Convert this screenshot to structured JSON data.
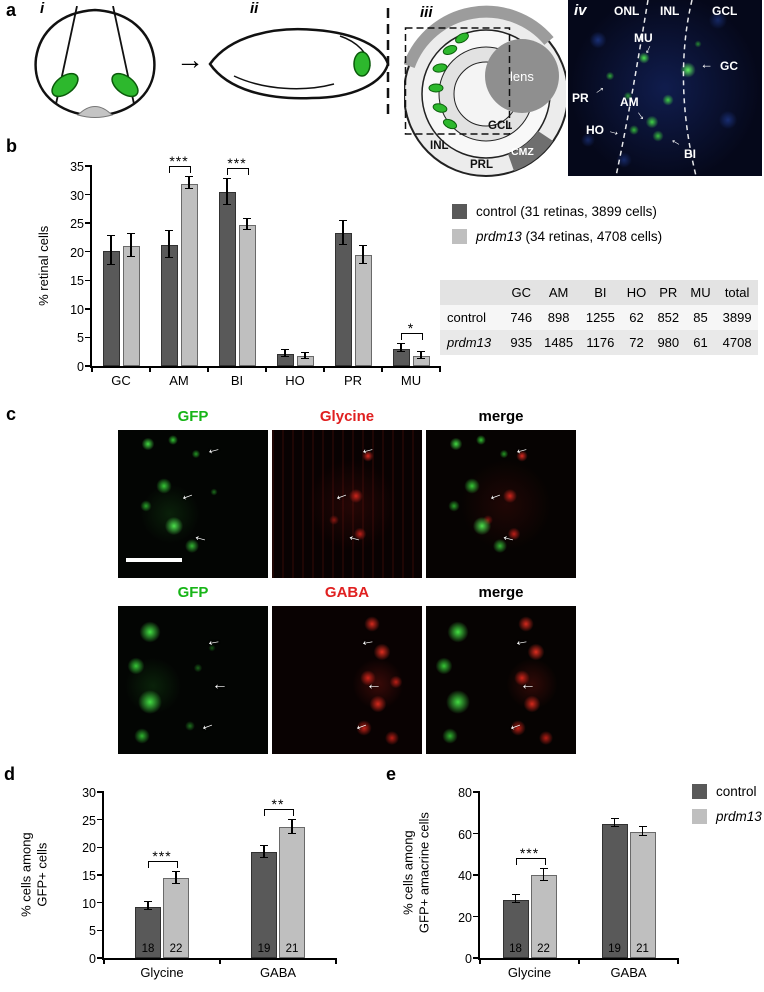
{
  "icons": {
    "arrow_right": "→"
  },
  "panels": {
    "a": {
      "label": "a",
      "sub_i": "i",
      "sub_ii": "ii",
      "sub_iii": "iii",
      "sub_iv": "iv",
      "iii_labels": {
        "lens": "lens",
        "gcl": "GCL",
        "inl": "INL",
        "cmz": "CMZ",
        "prl": "PRL"
      },
      "iv_labels": {
        "onl": "ONL",
        "inl": "INL",
        "gcl": "GCL",
        "mu": "MU",
        "gc": "GC",
        "pr": "PR",
        "am": "AM",
        "ho": "HO",
        "bi": "BI"
      }
    },
    "b": {
      "label": "b",
      "legend": [
        {
          "color": "#595959",
          "prefix": "",
          "text": "control (31 retinas, 3899 cells)"
        },
        {
          "color": "#bfbfbf",
          "prefix": "prdm13",
          "text": " (34 retinas, 4708 cells)"
        }
      ],
      "table": {
        "header": [
          "",
          "GC",
          "AM",
          "BI",
          "HO",
          "PR",
          "MU",
          "total"
        ],
        "rows": [
          [
            "control",
            "746",
            "898",
            "1255",
            "62",
            "852",
            "85",
            "3899"
          ],
          [
            "prdm13",
            "935",
            "1485",
            "1176",
            "72",
            "980",
            "61",
            "4708"
          ]
        ]
      }
    },
    "c": {
      "label": "c",
      "row1_titles": [
        "GFP",
        "Glycine",
        "merge"
      ],
      "row2_titles": [
        "GFP",
        "GABA",
        "merge"
      ],
      "colors": {
        "green": "#17b517",
        "red": "#e02020",
        "merge": "#000000"
      }
    },
    "d": {
      "label": "d"
    },
    "e": {
      "label": "e"
    },
    "legend_de": [
      {
        "color": "#595959",
        "text": "control"
      },
      {
        "color": "#bfbfbf",
        "text": "prdm13"
      }
    ]
  },
  "chart_data": [
    {
      "id": "b",
      "type": "bar",
      "title": "",
      "xlabel": "",
      "ylabel": "% retinal cells",
      "ylim": [
        0,
        35
      ],
      "ymax": 35,
      "ytick": 5,
      "categories": [
        "GC",
        "AM",
        "BI",
        "HO",
        "PR",
        "MU"
      ],
      "series": [
        {
          "name": "control",
          "color": "#595959",
          "values": [
            20.1,
            21.2,
            30.4,
            2.1,
            23.2,
            3.0
          ],
          "errors": [
            2.4,
            2.3,
            2.2,
            0.5,
            2.0,
            0.6
          ]
        },
        {
          "name": "prdm13",
          "color": "#bfbfbf",
          "values": [
            21.0,
            31.9,
            24.7,
            1.7,
            19.4,
            1.8
          ],
          "errors": [
            1.9,
            1.0,
            0.9,
            0.4,
            1.5,
            0.5
          ]
        }
      ],
      "significance": [
        {
          "category": 1,
          "label": "***"
        },
        {
          "category": 2,
          "label": "***"
        },
        {
          "category": 5,
          "label": "*"
        }
      ]
    },
    {
      "id": "d",
      "type": "bar",
      "title": "",
      "xlabel": "",
      "ylabel": [
        "% cells among",
        "GFP+ cells"
      ],
      "ylim": [
        0,
        30
      ],
      "ymax": 30,
      "ytick": 5,
      "categories": [
        "Glycine",
        "GABA"
      ],
      "series": [
        {
          "name": "control",
          "color": "#595959",
          "values": [
            9.3,
            19.1
          ],
          "errors": [
            0.6,
            1.0
          ],
          "n": [
            "18",
            "19"
          ]
        },
        {
          "name": "prdm13",
          "color": "#bfbfbf",
          "values": [
            14.4,
            23.6
          ],
          "errors": [
            1.0,
            1.2
          ],
          "n": [
            "22",
            "21"
          ]
        }
      ],
      "significance": [
        {
          "category": 0,
          "label": "***"
        },
        {
          "category": 1,
          "label": "**"
        }
      ]
    },
    {
      "id": "e",
      "type": "bar",
      "title": "",
      "xlabel": "",
      "ylabel": [
        "% cells among",
        "GFP+ amacrine cells"
      ],
      "ylim": [
        0,
        80
      ],
      "ymax": 80,
      "ytick": 20,
      "categories": [
        "Glycine",
        "GABA"
      ],
      "series": [
        {
          "name": "control",
          "color": "#595959",
          "values": [
            28.2,
            64.6
          ],
          "errors": [
            1.9,
            1.7
          ],
          "n": [
            "18",
            "19"
          ]
        },
        {
          "name": "prdm13",
          "color": "#bfbfbf",
          "values": [
            39.8,
            60.8
          ],
          "errors": [
            2.5,
            2.0
          ],
          "n": [
            "22",
            "21"
          ]
        }
      ],
      "significance": [
        {
          "category": 0,
          "label": "***"
        }
      ]
    }
  ]
}
